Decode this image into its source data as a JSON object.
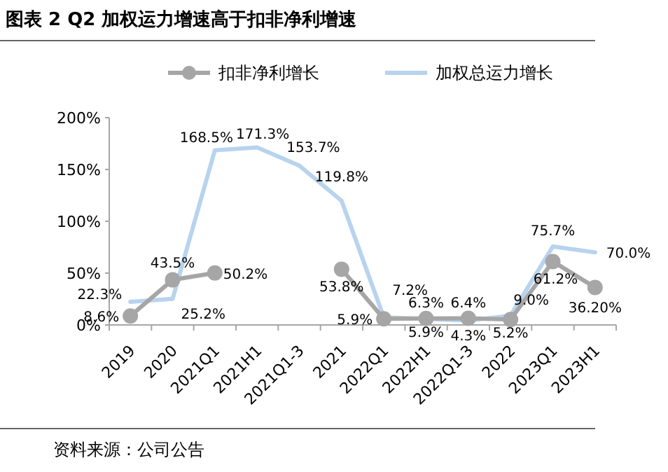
{
  "chart_data": {
    "type": "line",
    "title": "图表 2 Q2 加权运力增速高于扣非净利增速",
    "categories": [
      "2019",
      "2020",
      "2021Q1",
      "2021H1",
      "2021Q1-3",
      "2021",
      "2022Q1",
      "2022H1",
      "2022Q1-3",
      "2022",
      "2023Q1",
      "2023H1"
    ],
    "series": [
      {
        "name": "扣非净利增长",
        "color": "#a6a6a6",
        "marker": "circle",
        "values": [
          8.6,
          43.5,
          50.2,
          null,
          null,
          53.8,
          5.9,
          6.3,
          6.4,
          5.2,
          61.2,
          36.2
        ],
        "value_labels": [
          "8.6%",
          "43.5%",
          "50.2%",
          null,
          null,
          "53.8%",
          "5.9%",
          "6.3%",
          "6.4%",
          "5.2%",
          "61.2%",
          "36.20%"
        ]
      },
      {
        "name": "加权总运力增长",
        "color": "#b8d3ee",
        "marker": "none",
        "values": [
          22.3,
          25.2,
          168.5,
          171.3,
          153.7,
          119.8,
          7.2,
          5.9,
          4.3,
          9.0,
          75.7,
          70.0
        ],
        "value_labels": [
          "22.3%",
          "25.2%",
          "168.5%",
          "171.3%",
          "153.7%",
          "119.8%",
          "7.2%",
          "5.9%",
          "4.3%",
          "9.0%",
          "75.7%",
          "70.0%"
        ]
      }
    ],
    "ylim": [
      0,
      200
    ],
    "yticks": [
      {
        "value": 0,
        "label": "0%"
      },
      {
        "value": 50,
        "label": "50%"
      },
      {
        "value": 100,
        "label": "100%"
      },
      {
        "value": 150,
        "label": "150%"
      },
      {
        "value": 200,
        "label": "200%"
      }
    ],
    "legend": "top",
    "grid": false,
    "annotations": [
      "资料来源：公司公告"
    ]
  }
}
